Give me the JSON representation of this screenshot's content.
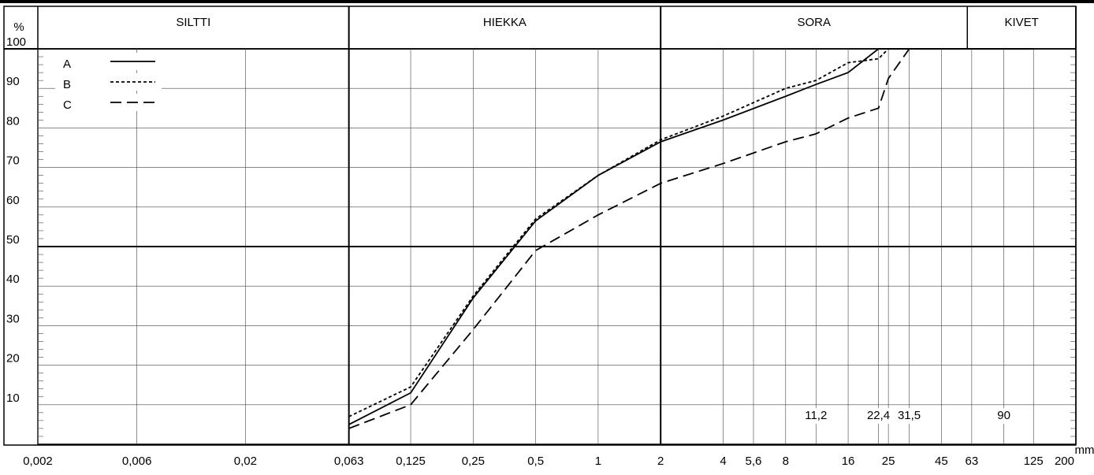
{
  "chart_data": {
    "type": "line",
    "log_x": true,
    "y_axis_label": "%",
    "x_unit_label": "mm",
    "xlim": [
      0.002,
      200
    ],
    "ylim": [
      0,
      100
    ],
    "xticks": [
      {
        "value": 0.002,
        "label": "0,002"
      },
      {
        "value": 0.006,
        "label": "0,006"
      },
      {
        "value": 0.02,
        "label": "0,02"
      },
      {
        "value": 0.063,
        "label": "0,063"
      },
      {
        "value": 0.125,
        "label": "0,125"
      },
      {
        "value": 0.25,
        "label": "0,25"
      },
      {
        "value": 0.5,
        "label": "0,5"
      },
      1,
      2,
      4,
      {
        "value": 5.6,
        "label": "5,6"
      },
      8,
      16,
      25,
      45,
      63,
      125,
      200
    ],
    "inner_xticks": [
      {
        "value": 11.2,
        "label": "11,2"
      },
      {
        "value": 22.4,
        "label": "22,4"
      },
      {
        "value": 31.5,
        "label": "31,5"
      },
      90
    ],
    "yticks": [
      10,
      20,
      30,
      40,
      50,
      60,
      70,
      80,
      90,
      100
    ],
    "major_x": [
      0.063,
      2
    ],
    "major_y": [
      50
    ],
    "zones": [
      {
        "label": "SILTTI",
        "from": 0.002,
        "to": 0.063
      },
      {
        "label": "HIEKKA",
        "from": 0.063,
        "to": 2
      },
      {
        "label": "SORA",
        "from": 2,
        "to": 60
      },
      {
        "label": "KIVET",
        "from": 60,
        "to": 200
      }
    ],
    "x": [
      0.063,
      0.125,
      0.25,
      0.5,
      1,
      2,
      4,
      8,
      11.2,
      16,
      22.4,
      25,
      31.5,
      125
    ],
    "series": [
      {
        "name": "A",
        "color": "#000000",
        "dash": "solid",
        "values": [
          5,
          13,
          37,
          56.5,
          68,
          76.5,
          82,
          88,
          91,
          94,
          100,
          100,
          100,
          100
        ]
      },
      {
        "name": "B",
        "color": "#000000",
        "dash": "dotted",
        "values": [
          7,
          14.5,
          37.5,
          57,
          68,
          77,
          83,
          90,
          92,
          96.5,
          97.5,
          100,
          100,
          100
        ]
      },
      {
        "name": "C",
        "color": "#000000",
        "dash": "dashed",
        "values": [
          4,
          10,
          29,
          49,
          58,
          66,
          71,
          76.5,
          78.5,
          82.5,
          85,
          92.5,
          100,
          100
        ]
      }
    ]
  }
}
